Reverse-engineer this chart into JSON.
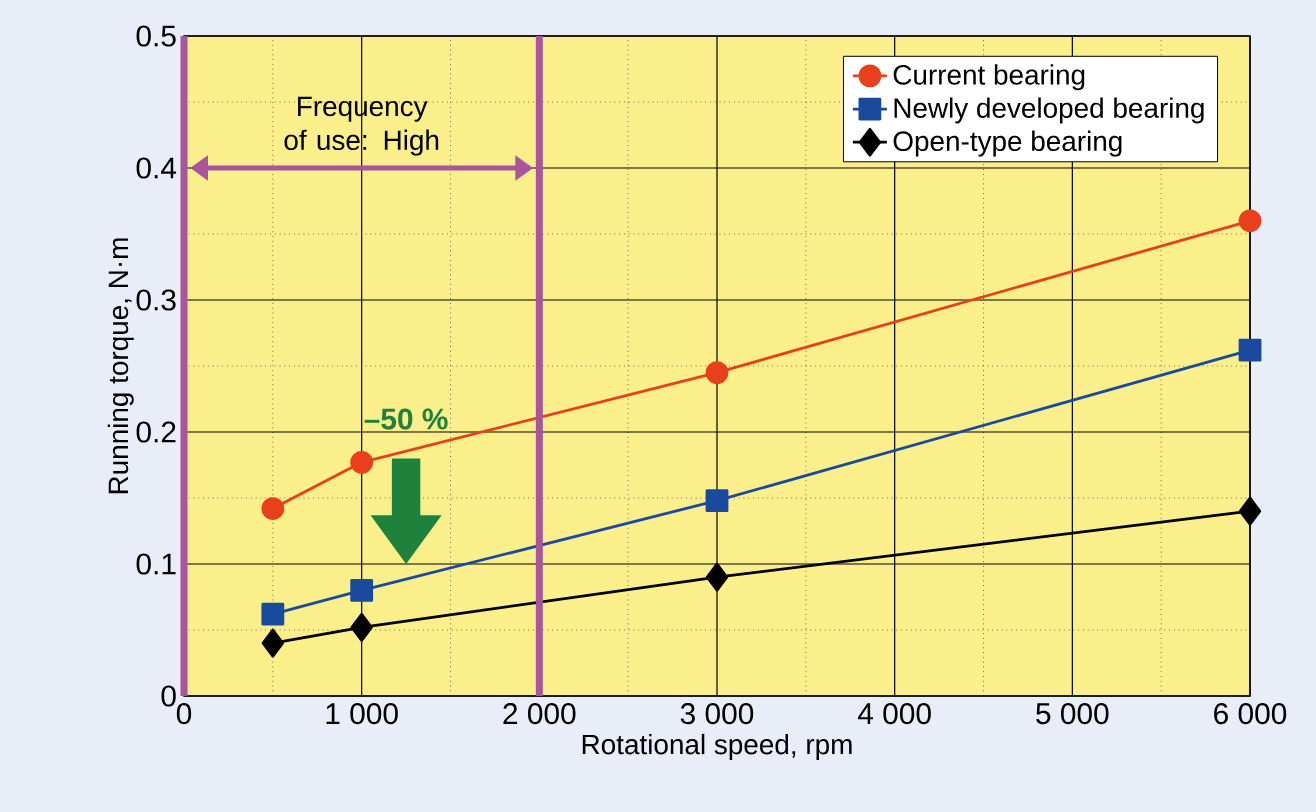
{
  "chart_data": {
    "type": "line",
    "xlabel": "Rotational speed, rpm",
    "ylabel": "Running torque, N·m",
    "xlim": [
      0,
      6000
    ],
    "xticks": [
      0,
      {
        "value": 1000,
        "label": "1 000"
      },
      {
        "value": 2000,
        "label": "2 000"
      },
      {
        "value": 3000,
        "label": "3 000"
      },
      {
        "value": 4000,
        "label": "4 000"
      },
      {
        "value": 5000,
        "label": "5 000"
      },
      {
        "value": 6000,
        "label": "6 000"
      }
    ],
    "ylim": [
      0,
      0.5
    ],
    "yticks": [
      0,
      0.1,
      0.2,
      0.3,
      0.4,
      0.5
    ],
    "grid": true,
    "legend": "top right",
    "series": [
      {
        "name": "Current bearing",
        "color": "#e8401c",
        "marker": "circle",
        "x": [
          500,
          1000,
          3000,
          6000
        ],
        "values": [
          0.142,
          0.177,
          0.245,
          0.36
        ]
      },
      {
        "name": "Newly developed bearing",
        "color": "#1a4a9e",
        "marker": "square",
        "x": [
          500,
          1000,
          3000,
          6000
        ],
        "values": [
          0.062,
          0.08,
          0.148,
          0.262
        ]
      },
      {
        "name": "Open-type bearing",
        "color": "#000000",
        "marker": "diamond",
        "x": [
          500,
          1000,
          3000,
          6000
        ],
        "values": [
          0.04,
          0.052,
          0.09,
          0.14
        ]
      }
    ],
    "ref_lines": [
      {
        "axis": "x",
        "value": 2000,
        "color": "#a8559e"
      }
    ],
    "annotations": [
      "Frequency of use: High",
      "–50 %"
    ]
  }
}
